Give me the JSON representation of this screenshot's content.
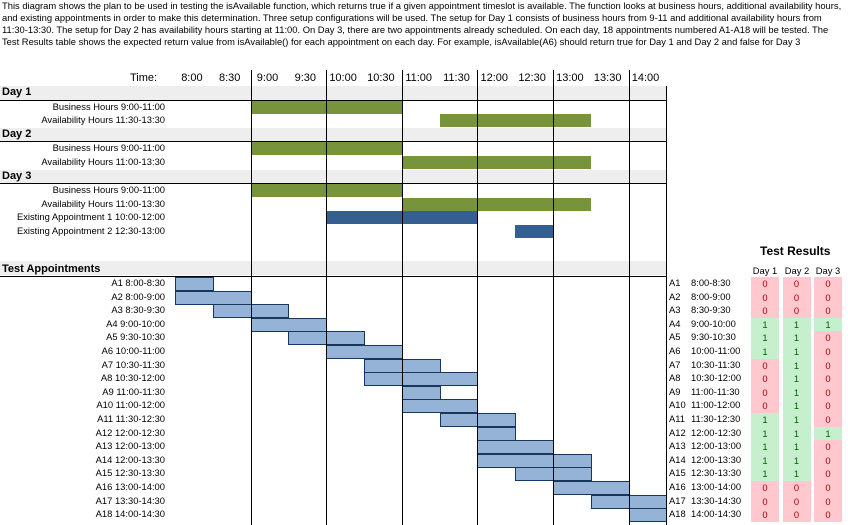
{
  "intro": "This diagram shows the plan to be used in testing the isAvailable function, which returns true if a given appointment timeslot is available. The function looks at business hours, additional availability hours, and existing appointments in order to make this determination. Three setup configurations will be used. The setup for Day 1 consists of business hours from 9-11 and additional availability hours from 11:30-13:30. The setup for Day 2 has availability hours starting at 11:00. On Day 3, there are two appointments already scheduled. On each day, 18 appointments numbered A1-A18 will be tested. The Test Results table shows the expected return value from isAvailable() for each appointment on each day. For example, isAvailable(A6) should return true for Day 1 and Day 2 and false for Day 3",
  "time_header": "Time:",
  "times": [
    "8:00",
    "8:30",
    "9:00",
    "9:30",
    "10:00",
    "10:30",
    "11:00",
    "11:30",
    "12:00",
    "12:30",
    "13:00",
    "13:30",
    "14:00"
  ],
  "days": [
    {
      "name": "Day 1",
      "rows": [
        {
          "label": "Business Hours 9:00-11:00",
          "start": "9:00",
          "end": "11:00",
          "kind": "green"
        },
        {
          "label": "Availability Hours 11:30-13:30",
          "start": "11:30",
          "end": "13:30",
          "kind": "green"
        }
      ]
    },
    {
      "name": "Day 2",
      "rows": [
        {
          "label": "Business Hours 9:00-11:00",
          "start": "9:00",
          "end": "11:00",
          "kind": "green"
        },
        {
          "label": "Availability Hours 11:00-13:30",
          "start": "11:00",
          "end": "13:30",
          "kind": "green"
        }
      ]
    },
    {
      "name": "Day 3",
      "rows": [
        {
          "label": "Business Hours 9:00-11:00",
          "start": "9:00",
          "end": "11:00",
          "kind": "green"
        },
        {
          "label": "Availability Hours 11:00-13:30",
          "start": "11:00",
          "end": "13:30",
          "kind": "green"
        },
        {
          "label": "Existing Appointment 1 10:00-12:00",
          "start": "10:00",
          "end": "12:00",
          "kind": "darkblue"
        },
        {
          "label": "Existing Appointment 2 12:30-13:00",
          "start": "12:30",
          "end": "13:00",
          "kind": "darkblue"
        }
      ]
    }
  ],
  "test_header": "Test Appointments",
  "appointments": [
    {
      "id": "A1",
      "time": "8:00-8:30",
      "start": "8:00",
      "end": "8:30",
      "r": [
        "0",
        "0",
        "0"
      ]
    },
    {
      "id": "A2",
      "time": "8:00-9:00",
      "start": "8:00",
      "end": "9:00",
      "r": [
        "0",
        "0",
        "0"
      ]
    },
    {
      "id": "A3",
      "time": "8:30-9:30",
      "start": "8:30",
      "end": "9:30",
      "r": [
        "0",
        "0",
        "0"
      ]
    },
    {
      "id": "A4",
      "time": "9:00-10:00",
      "start": "9:00",
      "end": "10:00",
      "r": [
        "1",
        "1",
        "1"
      ]
    },
    {
      "id": "A5",
      "time": "9:30-10:30",
      "start": "9:30",
      "end": "10:30",
      "r": [
        "1",
        "1",
        "0"
      ]
    },
    {
      "id": "A6",
      "time": "10:00-11:00",
      "start": "10:00",
      "end": "11:00",
      "r": [
        "1",
        "1",
        "0"
      ]
    },
    {
      "id": "A7",
      "time": "10:30-11:30",
      "start": "10:30",
      "end": "11:30",
      "r": [
        "0",
        "1",
        "0"
      ]
    },
    {
      "id": "A8",
      "time": "10:30-12:00",
      "start": "10:30",
      "end": "12:00",
      "r": [
        "0",
        "1",
        "0"
      ]
    },
    {
      "id": "A9",
      "time": "11:00-11:30",
      "start": "11:00",
      "end": "11:30",
      "r": [
        "0",
        "1",
        "0"
      ]
    },
    {
      "id": "A10",
      "time": "11:00-12:00",
      "start": "11:00",
      "end": "12:00",
      "r": [
        "0",
        "1",
        "0"
      ]
    },
    {
      "id": "A11",
      "time": "11:30-12:30",
      "start": "11:30",
      "end": "12:30",
      "r": [
        "1",
        "1",
        "0"
      ]
    },
    {
      "id": "A12",
      "time": "12:00-12:30",
      "start": "12:00",
      "end": "12:30",
      "r": [
        "1",
        "1",
        "1"
      ]
    },
    {
      "id": "A13",
      "time": "12:00-13:00",
      "start": "12:00",
      "end": "13:00",
      "r": [
        "1",
        "1",
        "0"
      ]
    },
    {
      "id": "A14",
      "time": "12:00-13:30",
      "start": "12:00",
      "end": "13:30",
      "r": [
        "1",
        "1",
        "0"
      ]
    },
    {
      "id": "A15",
      "time": "12:30-13:30",
      "start": "12:30",
      "end": "13:30",
      "r": [
        "1",
        "1",
        "0"
      ]
    },
    {
      "id": "A16",
      "time": "13:00-14:00",
      "start": "13:00",
      "end": "14:00",
      "r": [
        "0",
        "0",
        "0"
      ]
    },
    {
      "id": "A17",
      "time": "13:30-14:30",
      "start": "13:30",
      "end": "14:30",
      "r": [
        "0",
        "0",
        "0"
      ]
    },
    {
      "id": "A18",
      "time": "14:00-14:30",
      "start": "14:00",
      "end": "14:30",
      "r": [
        "0",
        "0",
        "0"
      ]
    }
  ],
  "results_title": "Test Results",
  "results_cols": [
    "Day 1",
    "Day 2",
    "Day 3"
  ],
  "colors": {
    "green": "#77933c",
    "darkblue": "#365f91",
    "appt": "#95b3d7",
    "true_bg": "#c6efce",
    "false_bg": "#ffc7ce",
    "true_fg": "#006100",
    "false_fg": "#9c0006"
  }
}
